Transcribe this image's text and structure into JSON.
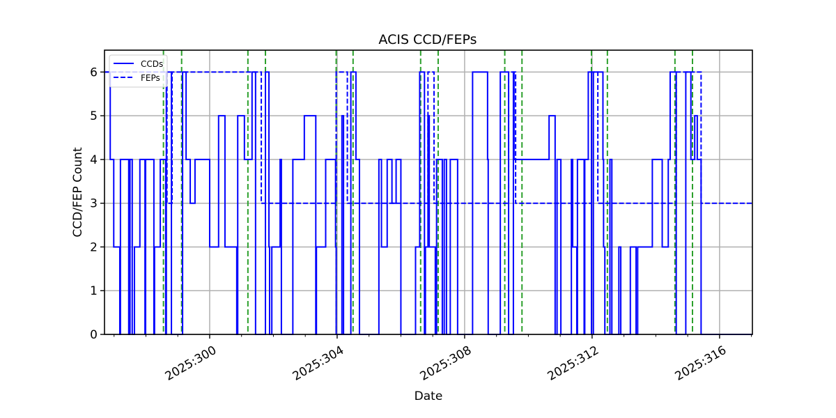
{
  "chart_data": {
    "type": "line",
    "title": "ACIS CCD/FEPs",
    "xlabel": "Date",
    "ylabel": "CCD/FEP Count",
    "xlim": [
      296.7,
      317.03
    ],
    "ylim": [
      0,
      6.5
    ],
    "grid": true,
    "legend_position": "upper left",
    "x_ticks": [
      300,
      304,
      308,
      312,
      316
    ],
    "x_tick_labels": [
      "2025:300",
      "2025:304",
      "2025:308",
      "2025:312",
      "2025:316"
    ],
    "x_minor_ticks": [
      297,
      298,
      299,
      301,
      302,
      303,
      305,
      306,
      307,
      309,
      310,
      311,
      313,
      314,
      315,
      317
    ],
    "y_ticks": [
      0,
      1,
      2,
      3,
      4,
      5,
      6
    ],
    "y_tick_labels": [
      "0",
      "1",
      "2",
      "3",
      "4",
      "5",
      "6"
    ],
    "series": [
      {
        "name": "CCDs",
        "style": "solid",
        "color": "#0000ff",
        "step_x": [
          296.7,
          296.88,
          296.99,
          297.18,
          297.2,
          297.46,
          297.5,
          297.57,
          297.64,
          297.81,
          297.97,
          297.99,
          298.25,
          298.27,
          298.45,
          298.62,
          298.64,
          298.8,
          299.15,
          299.26,
          299.39,
          299.54,
          300.0,
          300.28,
          300.48,
          300.85,
          300.88,
          301.09,
          301.33,
          301.44,
          301.75,
          301.86,
          301.88,
          301.95,
          302.21,
          302.25,
          302.61,
          302.97,
          303.33,
          303.35,
          303.64,
          303.95,
          303.97,
          304.15,
          304.2,
          304.43,
          304.59,
          304.7,
          305.31,
          305.39,
          305.57,
          305.72,
          305.85,
          306.0,
          306.33,
          306.46,
          306.59,
          306.74,
          306.77,
          306.85,
          306.89,
          307.08,
          307.12,
          307.3,
          307.36,
          307.43,
          307.55,
          307.6,
          307.76,
          307.78,
          308.25,
          308.31,
          308.72,
          308.74,
          309.12,
          309.38,
          309.53,
          309.55,
          309.8,
          309.88,
          310.65,
          310.84,
          310.9,
          311.01,
          311.02,
          311.35,
          311.39,
          311.52,
          311.54,
          311.75,
          311.77,
          311.88,
          311.98,
          312.04,
          312.34,
          312.36,
          312.4,
          312.56,
          312.62,
          312.84,
          312.9,
          313.2,
          313.22,
          313.38,
          313.43,
          313.89,
          314.2,
          314.39,
          314.45,
          314.64,
          314.94,
          315.1,
          315.22,
          315.3,
          315.42,
          315.55,
          315.6,
          317.03
        ],
        "step_y": [
          6,
          4,
          2,
          0,
          4,
          0,
          4,
          0,
          2,
          4,
          0,
          4,
          0,
          2,
          4,
          0,
          6,
          0,
          6,
          4,
          3,
          4,
          2,
          5,
          2,
          0,
          5,
          4,
          6,
          0,
          6,
          2,
          0,
          2,
          4,
          0,
          4,
          5,
          0,
          2,
          4,
          2,
          0,
          5,
          0,
          6,
          4,
          0,
          4,
          2,
          4,
          3,
          4,
          0,
          0,
          2,
          6,
          0,
          2,
          5,
          2,
          0,
          4,
          0,
          4,
          0,
          4,
          4,
          4,
          0,
          6,
          6,
          4,
          0,
          6,
          0,
          6,
          4,
          4,
          4,
          5,
          0,
          4,
          4,
          0,
          4,
          2,
          0,
          4,
          0,
          4,
          6,
          0,
          6,
          4,
          2,
          0,
          4,
          0,
          2,
          0,
          2,
          2,
          0,
          2,
          4,
          2,
          4,
          6,
          0,
          6,
          4,
          5,
          4,
          0,
          0,
          0
        ]
      },
      {
        "name": "FEPs",
        "style": "dashed",
        "color": "#0000ff",
        "step_x": [
          296.7,
          298.45,
          298.66,
          298.82,
          301.44,
          301.62,
          303.97,
          304.32,
          306.85,
          307.04,
          309.38,
          309.6,
          311.98,
          312.18,
          314.64,
          315.42,
          317.03
        ],
        "step_y": [
          6,
          6,
          3,
          6,
          6,
          3,
          6,
          3,
          6,
          3,
          6,
          3,
          6,
          3,
          6,
          3,
          3
        ],
        "note": "FEP count tracks CCD count except where it stays at 3 while CCDs drop to 0; visible as dashed segments at 3"
      }
    ],
    "vertical_markers": {
      "style": "dashed",
      "color": "#2ca02c",
      "x": [
        298.55,
        299.12,
        301.2,
        301.75,
        303.97,
        304.5,
        306.62,
        307.17,
        309.26,
        309.8,
        311.98,
        312.48,
        314.6,
        315.15
      ]
    },
    "legend": [
      {
        "label": "CCDs",
        "style": "solid"
      },
      {
        "label": "FEPs",
        "style": "dashed"
      }
    ]
  }
}
